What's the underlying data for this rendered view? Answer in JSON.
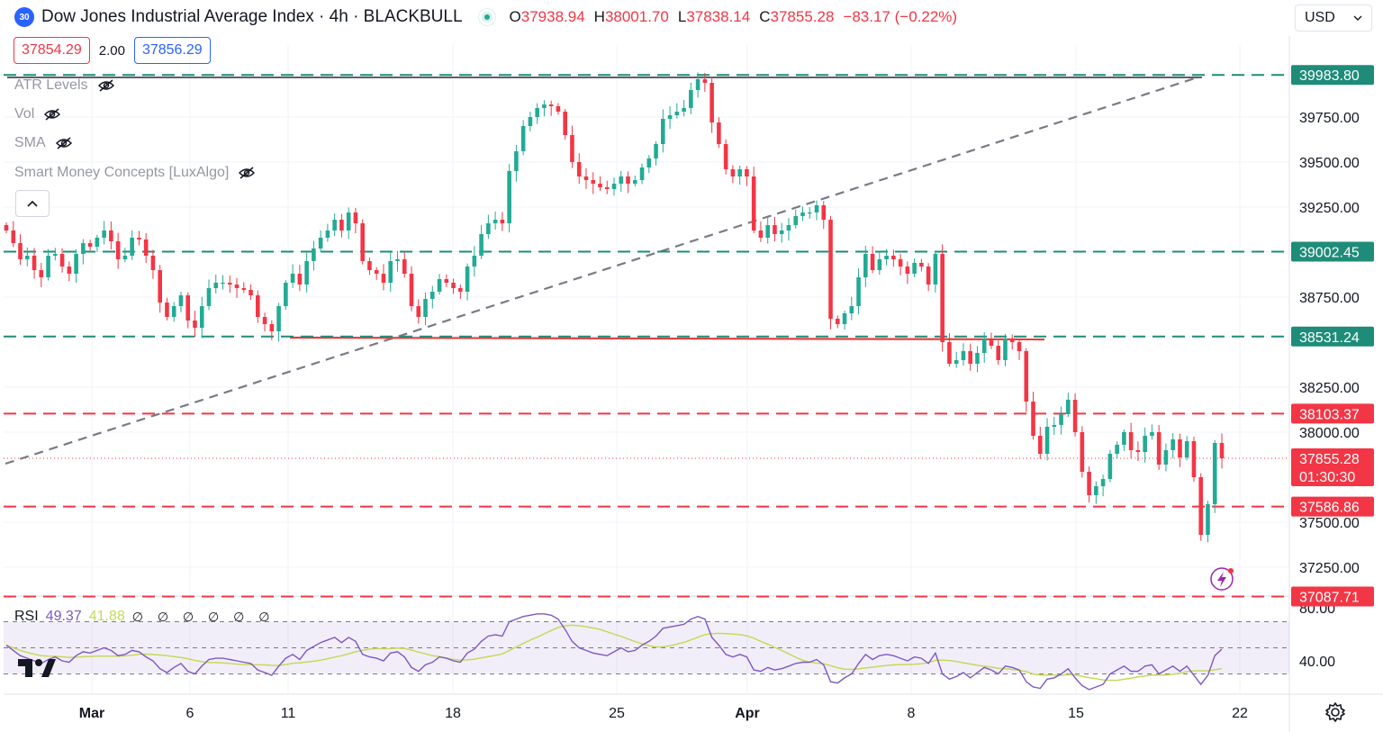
{
  "header": {
    "badge": "30",
    "title": "Dow Jones Industrial Average Index · 4h · BLACKBULL",
    "open_label": "O",
    "open": "37938.94",
    "high_label": "H",
    "high": "38001.70",
    "low_label": "L",
    "low": "37838.14",
    "close_label": "C",
    "close": "37855.28",
    "change": "−83.17 (−0.22%)"
  },
  "trade": {
    "bid": "37854.29",
    "spread": "2.00",
    "ask": "37856.29"
  },
  "indicators": [
    "ATR Levels",
    "Vol",
    "SMA",
    "Smart Money Concepts [LuxAlgo]"
  ],
  "currency": "USD",
  "rsi": {
    "label": "RSI",
    "value": "49.37",
    "ma": "41.88",
    "extra": "∅ ∅ ∅ ∅ ∅ ∅"
  },
  "colors": {
    "up": "#22ab94",
    "down": "#f23645",
    "rsi": "#7e57c2",
    "rsi_ma": "#c6d95b",
    "level_green": "#1e8c78",
    "level_red": "#f23645"
  },
  "chart_data": {
    "type": "candlestick",
    "y_axis_ticks": [
      39750,
      39500,
      39250,
      38750,
      38250,
      38000,
      37500,
      37250
    ],
    "y_range": [
      37030,
      40040
    ],
    "x_ticks": [
      "Mar",
      "6",
      "11",
      "18",
      "25",
      "Apr",
      "8",
      "15",
      "22"
    ],
    "levels": [
      {
        "value": 39983.8,
        "label": "39983.80",
        "color": "green",
        "style": "dashed"
      },
      {
        "value": 39002.45,
        "label": "39002.45",
        "color": "green",
        "style": "dashed"
      },
      {
        "value": 38531.24,
        "label": "38531.24",
        "color": "green",
        "style": "dashed"
      },
      {
        "value": 38103.37,
        "label": "38103.37",
        "color": "red",
        "style": "dashed"
      },
      {
        "value": 37586.86,
        "label": "37586.86",
        "color": "red",
        "style": "dashed"
      },
      {
        "value": 37087.71,
        "label": "37087.71",
        "color": "red",
        "style": "dashed"
      }
    ],
    "current_price": {
      "value": 37855.28,
      "label": "37855.28",
      "countdown": "01:30:30"
    },
    "closes": [
      39120,
      39050,
      38960,
      38980,
      38900,
      38860,
      38980,
      38990,
      38920,
      38880,
      38990,
      39050,
      39030,
      39080,
      39120,
      39060,
      38960,
      38980,
      39080,
      39070,
      38980,
      38900,
      38720,
      38640,
      38700,
      38760,
      38620,
      38580,
      38700,
      38800,
      38830,
      38830,
      38820,
      38800,
      38790,
      38760,
      38640,
      38600,
      38560,
      38700,
      38830,
      38880,
      38820,
      38950,
      39020,
      39080,
      39120,
      39180,
      39120,
      39220,
      39160,
      38950,
      38900,
      38880,
      38830,
      38950,
      38960,
      38880,
      38700,
      38640,
      38740,
      38780,
      38850,
      38830,
      38800,
      38780,
      38920,
      38980,
      39100,
      39160,
      39180,
      39160,
      39450,
      39560,
      39700,
      39750,
      39800,
      39820,
      39810,
      39780,
      39650,
      39500,
      39420,
      39400,
      39380,
      39360,
      39350,
      39380,
      39420,
      39380,
      39400,
      39470,
      39520,
      39600,
      39740,
      39760,
      39780,
      39800,
      39900,
      39960,
      39940,
      39720,
      39600,
      39460,
      39420,
      39460,
      39420,
      39120,
      39080,
      39150,
      39100,
      39120,
      39150,
      39200,
      39220,
      39220,
      39260,
      39180,
      38630,
      38600,
      38660,
      38700,
      38860,
      38990,
      38900,
      38960,
      38980,
      38960,
      38920,
      38880,
      38940,
      38920,
      38820,
      38990,
      38500,
      38380,
      38400,
      38450,
      38380,
      38440,
      38520,
      38480,
      38400,
      38520,
      38500,
      38450,
      38170,
      37980,
      37880,
      38030,
      38040,
      38100,
      38180,
      38000,
      37780,
      37650,
      37700,
      37740,
      37880,
      37930,
      38000,
      37900,
      37890,
      37980,
      38000,
      37820,
      37900,
      37960,
      37860,
      37950,
      37750,
      37430,
      37600,
      37940,
      37855
    ],
    "rsi_values": [
      52,
      48,
      44,
      42,
      40,
      38,
      41,
      43,
      40,
      39,
      44,
      47,
      46,
      48,
      50,
      48,
      44,
      45,
      48,
      47,
      43,
      40,
      34,
      31,
      35,
      38,
      32,
      30,
      36,
      41,
      42,
      42,
      41,
      40,
      39,
      38,
      33,
      31,
      29,
      36,
      42,
      45,
      41,
      48,
      51,
      54,
      56,
      58,
      54,
      58,
      55,
      45,
      43,
      42,
      40,
      46,
      47,
      43,
      35,
      32,
      37,
      39,
      43,
      42,
      40,
      39,
      46,
      49,
      55,
      59,
      60,
      59,
      70,
      72,
      74,
      75,
      76,
      76,
      75,
      72,
      64,
      55,
      50,
      48,
      46,
      45,
      44,
      47,
      50,
      47,
      48,
      52,
      55,
      59,
      65,
      66,
      67,
      68,
      72,
      74,
      72,
      58,
      52,
      45,
      43,
      45,
      43,
      33,
      32,
      35,
      33,
      34,
      36,
      38,
      39,
      39,
      41,
      37,
      24,
      23,
      27,
      30,
      38,
      45,
      41,
      44,
      45,
      44,
      42,
      40,
      43,
      42,
      38,
      46,
      30,
      26,
      28,
      31,
      27,
      31,
      35,
      33,
      30,
      36,
      35,
      33,
      24,
      20,
      19,
      26,
      27,
      30,
      34,
      27,
      21,
      18,
      20,
      22,
      30,
      33,
      36,
      32,
      32,
      36,
      37,
      30,
      33,
      36,
      32,
      36,
      29,
      22,
      29,
      44,
      49
    ]
  }
}
